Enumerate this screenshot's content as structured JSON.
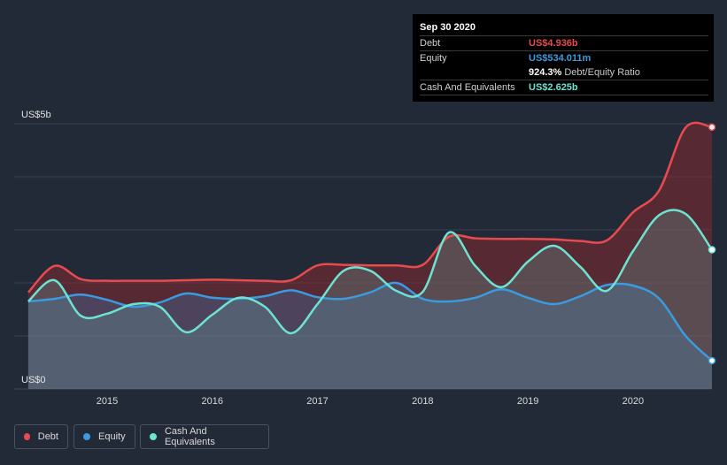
{
  "tooltip": {
    "date": "Sep 30 2020",
    "rows": [
      {
        "label": "Debt",
        "value": "US$4.936b",
        "color": "#e84b4f"
      },
      {
        "label": "Equity",
        "value": "US$534.011m",
        "color": "#3a9be0"
      },
      {
        "label": "",
        "value": "924.3%",
        "sub": "Debt/Equity Ratio",
        "color": "#ffffff"
      },
      {
        "label": "Cash And Equivalents",
        "value": "US$2.625b",
        "color": "#6de3d1"
      }
    ]
  },
  "legend": [
    {
      "label": "Debt",
      "color": "#e84b4f"
    },
    {
      "label": "Equity",
      "color": "#3a9be0"
    },
    {
      "label": "Cash And Equivalents",
      "color": "#6de3d1"
    }
  ],
  "chart_data": {
    "type": "area",
    "y_unit": "US$b",
    "ylim": [
      0,
      5
    ],
    "y_tick_labels": [
      {
        "value": 5,
        "label": "US$5b"
      },
      {
        "value": 0,
        "label": "US$0"
      }
    ],
    "x_ticks": [
      2015,
      2016,
      2017,
      2018,
      2019,
      2020
    ],
    "xlim": [
      2014.15,
      2020.75
    ],
    "grid": true,
    "series": [
      {
        "name": "Debt",
        "color": "#e84b4f",
        "x": [
          2014.25,
          2014.5,
          2014.75,
          2015.0,
          2015.25,
          2015.5,
          2015.75,
          2016.0,
          2016.25,
          2016.5,
          2016.75,
          2017.0,
          2017.25,
          2017.5,
          2017.75,
          2018.0,
          2018.25,
          2018.5,
          2018.75,
          2019.0,
          2019.25,
          2019.5,
          2019.75,
          2020.0,
          2020.25,
          2020.5,
          2020.75
        ],
        "values": [
          1.82,
          2.32,
          2.07,
          2.04,
          2.04,
          2.04,
          2.05,
          2.06,
          2.05,
          2.04,
          2.05,
          2.33,
          2.34,
          2.33,
          2.33,
          2.34,
          2.87,
          2.84,
          2.83,
          2.83,
          2.82,
          2.79,
          2.8,
          3.33,
          3.75,
          4.93,
          4.936
        ]
      },
      {
        "name": "Equity",
        "color": "#3a9be0",
        "x": [
          2014.25,
          2014.5,
          2014.75,
          2015.0,
          2015.25,
          2015.5,
          2015.75,
          2016.0,
          2016.25,
          2016.5,
          2016.75,
          2017.0,
          2017.25,
          2017.5,
          2017.75,
          2018.0,
          2018.25,
          2018.5,
          2018.75,
          2019.0,
          2019.25,
          2019.5,
          2019.75,
          2020.0,
          2020.25,
          2020.5,
          2020.75
        ],
        "values": [
          1.65,
          1.7,
          1.78,
          1.68,
          1.55,
          1.63,
          1.8,
          1.72,
          1.7,
          1.75,
          1.86,
          1.73,
          1.7,
          1.82,
          2.0,
          1.7,
          1.65,
          1.72,
          1.88,
          1.72,
          1.6,
          1.75,
          1.96,
          1.95,
          1.7,
          1.0,
          0.534
        ]
      },
      {
        "name": "Cash And Equivalents",
        "color": "#6de3d1",
        "x": [
          2014.25,
          2014.5,
          2014.75,
          2015.0,
          2015.25,
          2015.5,
          2015.75,
          2016.0,
          2016.25,
          2016.5,
          2016.75,
          2017.0,
          2017.25,
          2017.5,
          2017.75,
          2018.0,
          2018.25,
          2018.5,
          2018.75,
          2019.0,
          2019.25,
          2019.5,
          2019.75,
          2020.0,
          2020.25,
          2020.5,
          2020.75
        ],
        "values": [
          1.65,
          2.05,
          1.38,
          1.42,
          1.6,
          1.55,
          1.07,
          1.4,
          1.72,
          1.55,
          1.05,
          1.6,
          2.23,
          2.23,
          1.85,
          1.83,
          2.95,
          2.32,
          1.92,
          2.4,
          2.7,
          2.3,
          1.85,
          2.6,
          3.28,
          3.3,
          2.625
        ]
      }
    ]
  }
}
